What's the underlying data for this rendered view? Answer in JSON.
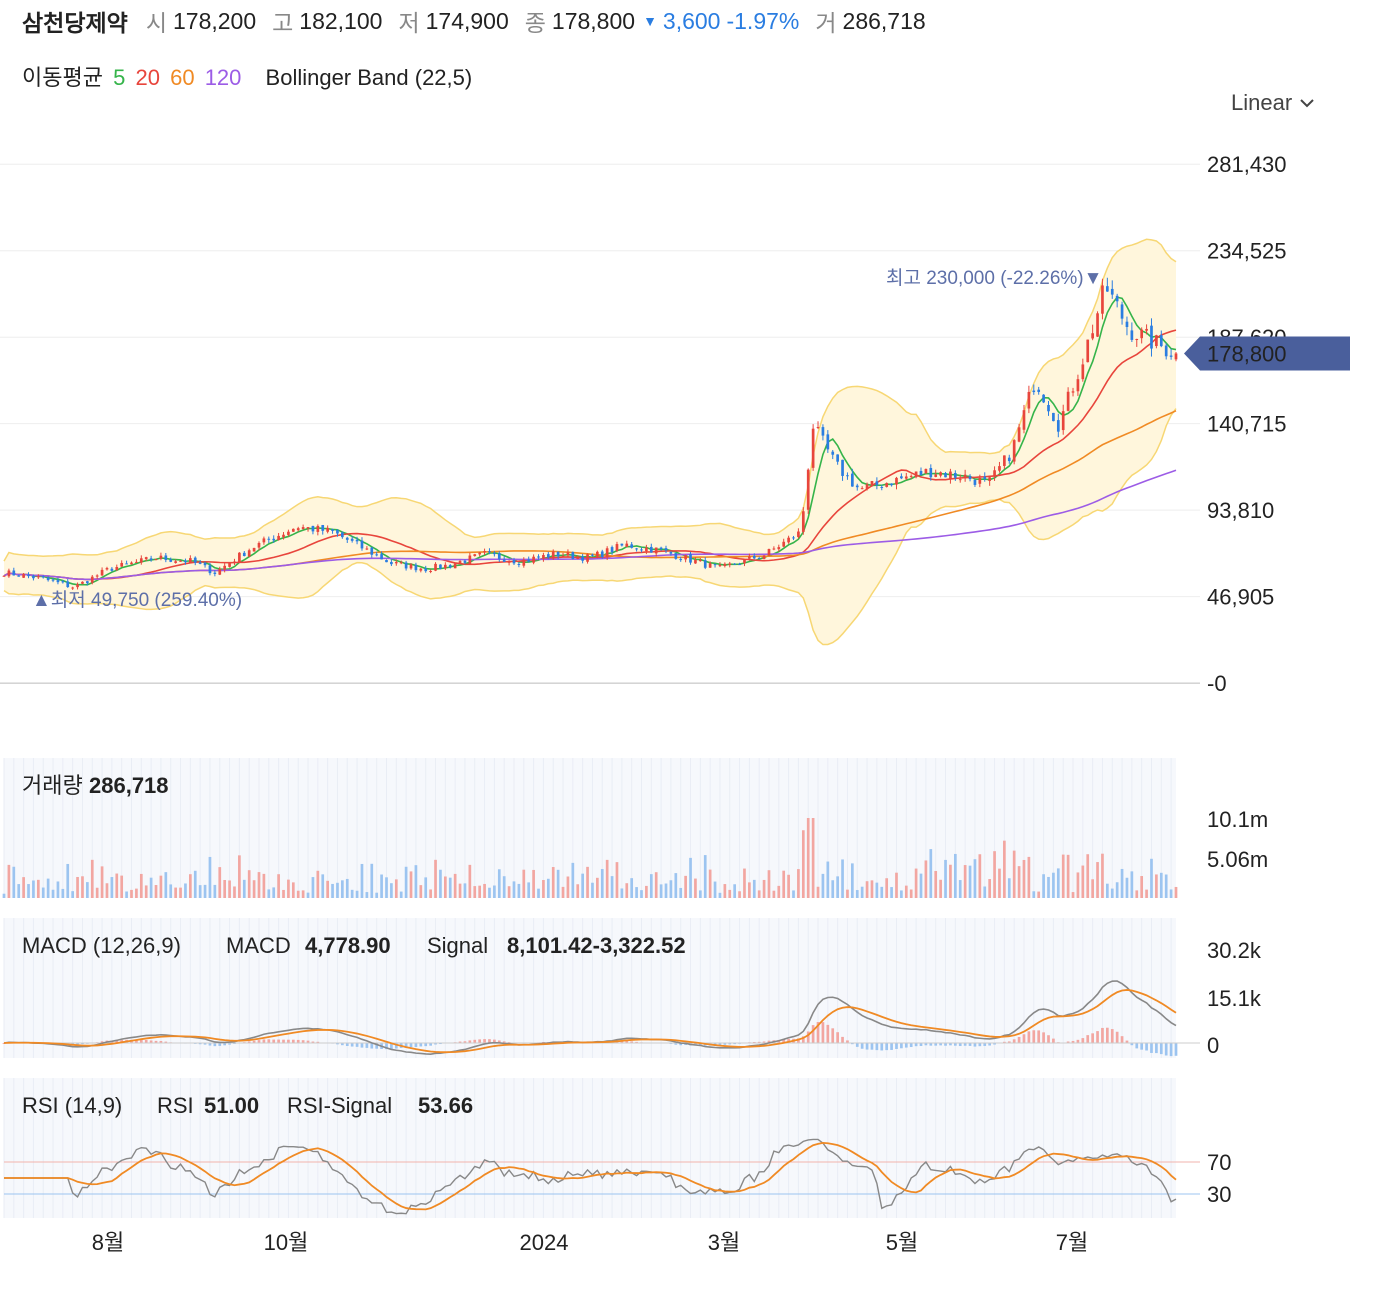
{
  "header": {
    "name": "삼천당제약",
    "open_label": "시",
    "open": "178,200",
    "high_label": "고",
    "high": "182,100",
    "low_label": "저",
    "low": "174,900",
    "close_label": "종",
    "close": "178,800",
    "change_arrow": "▼",
    "change": "3,600",
    "change_pct": "-1.97%",
    "volume_label": "거",
    "volume": "286,718"
  },
  "indicators": {
    "ma_label": "이동평균",
    "ma_periods": [
      "5",
      "20",
      "60",
      "120"
    ],
    "ma_colors": [
      "#35b44a",
      "#e8453c",
      "#f08a24",
      "#9c5ce6"
    ],
    "bollinger_label": "Bollinger Band (22,5)"
  },
  "scale_selector": {
    "label": "Linear"
  },
  "colors": {
    "up": "#e8453c",
    "down": "#2a7de1",
    "bollinger": "#f7d774",
    "macd": "#888888",
    "signal": "#f08a24",
    "rsi_high": "#e8453c",
    "rsi_low": "#2a7de1"
  },
  "chart_data": {
    "type": "candlestick",
    "x_labels": [
      "8월",
      "10월",
      "2024",
      "3월",
      "5월",
      "7월"
    ],
    "price_axis": {
      "ticks": [
        "281,430",
        "234,525",
        "140,715",
        "93,810",
        "46,905",
        "-0"
      ],
      "hidden_tick": "187,620",
      "range": [
        0,
        300000
      ]
    },
    "current_price": "178,800",
    "high_annotation": {
      "label": "최고",
      "text": "230,000 (-22.26%)▼"
    },
    "low_annotation": {
      "label": "▲최저",
      "text": "49,750 (259.40%)"
    },
    "price_series": [
      [
        0,
        60000
      ],
      [
        0.03,
        57000
      ],
      [
        0.06,
        52000
      ],
      [
        0.09,
        62000
      ],
      [
        0.13,
        68000
      ],
      [
        0.16,
        66000
      ],
      [
        0.18,
        60000
      ],
      [
        0.21,
        73000
      ],
      [
        0.25,
        85000
      ],
      [
        0.28,
        82000
      ],
      [
        0.31,
        72000
      ],
      [
        0.33,
        65000
      ],
      [
        0.36,
        62000
      ],
      [
        0.38,
        64000
      ],
      [
        0.41,
        70000
      ],
      [
        0.44,
        66000
      ],
      [
        0.47,
        70000
      ],
      [
        0.5,
        68000
      ],
      [
        0.53,
        75000
      ],
      [
        0.56,
        72000
      ],
      [
        0.58,
        68000
      ],
      [
        0.61,
        62000
      ],
      [
        0.65,
        70000
      ],
      [
        0.68,
        82000
      ],
      [
        0.69,
        140000
      ],
      [
        0.71,
        118000
      ],
      [
        0.73,
        105000
      ],
      [
        0.76,
        110000
      ],
      [
        0.79,
        115000
      ],
      [
        0.82,
        112000
      ],
      [
        0.84,
        108000
      ],
      [
        0.86,
        126000
      ],
      [
        0.88,
        165000
      ],
      [
        0.9,
        140000
      ],
      [
        0.92,
        175000
      ],
      [
        0.94,
        215000
      ],
      [
        0.96,
        192000
      ],
      [
        0.98,
        185000
      ],
      [
        1,
        178800
      ]
    ],
    "series": [
      {
        "name": "5",
        "period": 5
      },
      {
        "name": "20",
        "period": 20
      },
      {
        "name": "60",
        "period": 60
      },
      {
        "name": "120",
        "period": 120
      }
    ],
    "panels": [
      {
        "name": "volume",
        "title": "거래량",
        "value": "286,718",
        "ticks": [
          "10.1m",
          "5.06m"
        ]
      },
      {
        "name": "macd",
        "title": "MACD (12,26,9)",
        "macd_label": "MACD",
        "macd_value": "4,778.90",
        "signal_label": "Signal",
        "signal_value": "8,101.42",
        "hist_value": "-3,322.52",
        "ticks": [
          "30.2k",
          "15.1k",
          "0"
        ]
      },
      {
        "name": "rsi",
        "title": "RSI (14,9)",
        "rsi_label": "RSI",
        "rsi_value": "51.00",
        "signal_label": "RSI-Signal",
        "signal_value": "53.66",
        "levels": [
          "70",
          "30"
        ]
      }
    ]
  }
}
